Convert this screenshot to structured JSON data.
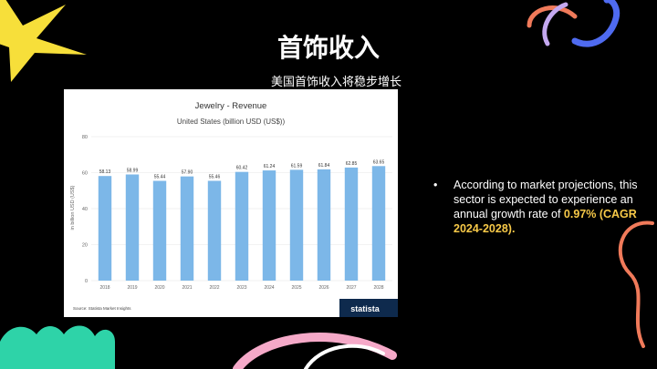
{
  "slide": {
    "title": "首饰收入",
    "subtitle": "美国首饰收入将稳步增长"
  },
  "bullet": {
    "marker": "•",
    "text": "According to market projections, this sector is expected to experience an annual growth rate of ",
    "highlight": "0.97% (CAGR 2024-2028)."
  },
  "chart_source": "Source: Statista Market Insights",
  "chart_brand": "statista",
  "colors": {
    "background": "#000000",
    "bar": "#7cb7e8",
    "highlight": "#f7c948",
    "star": "#f7df3a",
    "teal_blob": "#2ed3a8",
    "coral_swirl": "#f07a5a",
    "blue_swirl": "#4f6bf0",
    "lilac_swirl": "#c4a8f0",
    "pink_arc": "#f5a9c8"
  },
  "chart_data": {
    "type": "bar",
    "title": "Jewelry - Revenue",
    "subtitle": "United States (billion USD (US$))",
    "ylabel": "in billion USD (US$)",
    "xlabel": "",
    "ylim": [
      0,
      80
    ],
    "yticks": [
      0,
      20,
      40,
      60,
      80
    ],
    "grid": true,
    "categories": [
      "2018",
      "2019",
      "2020",
      "2021",
      "2022",
      "2023",
      "2024",
      "2025",
      "2026",
      "2027",
      "2028"
    ],
    "values": [
      58.13,
      58.99,
      55.44,
      57.9,
      55.46,
      60.42,
      61.24,
      61.59,
      61.84,
      62.85,
      63.65
    ],
    "data_labels": [
      "58.13",
      "58.99",
      "55.44",
      "57.90",
      "55.46",
      "60.42",
      "61.24",
      "61.59",
      "61.84",
      "62.85",
      "63.65"
    ]
  }
}
